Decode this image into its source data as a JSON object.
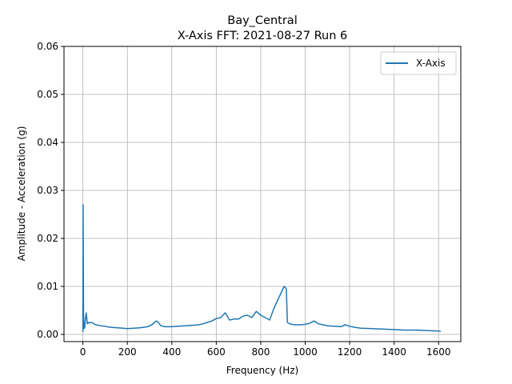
{
  "chart_data": {
    "type": "line",
    "title": "Bay_Central",
    "subtitle": "X-Axis FFT: 2021-08-27 Run 6",
    "xlabel": "Frequency (Hz)",
    "ylabel": "Amplitude - Acceleration (g)",
    "xlim": [
      -85,
      1700
    ],
    "ylim": [
      -0.0015,
      0.06
    ],
    "xticks": [
      0,
      200,
      400,
      600,
      800,
      1000,
      1200,
      1400,
      1600
    ],
    "xtick_labels": [
      "0",
      "200",
      "400",
      "600",
      "800",
      "1000",
      "1200",
      "1400",
      "1600"
    ],
    "yticks": [
      0.0,
      0.01,
      0.02,
      0.03,
      0.04,
      0.05,
      0.06
    ],
    "ytick_labels": [
      "0.00",
      "0.01",
      "0.02",
      "0.03",
      "0.04",
      "0.05",
      "0.06"
    ],
    "grid": true,
    "legend_position": "top-right",
    "series": [
      {
        "name": "X-Axis",
        "color": "#1f77b4",
        "x": [
          0,
          1,
          3,
          5,
          8,
          10,
          12,
          15,
          20,
          25,
          30,
          40,
          50,
          60,
          80,
          100,
          120,
          150,
          180,
          200,
          230,
          260,
          290,
          310,
          330,
          340,
          350,
          370,
          400,
          430,
          460,
          490,
          520,
          540,
          560,
          580,
          600,
          620,
          640,
          660,
          680,
          700,
          720,
          740,
          760,
          780,
          800,
          820,
          840,
          860,
          870,
          880,
          890,
          900,
          905,
          910,
          915,
          920,
          930,
          950,
          980,
          1000,
          1020,
          1040,
          1060,
          1080,
          1100,
          1130,
          1160,
          1180,
          1200,
          1220,
          1250,
          1300,
          1350,
          1400,
          1450,
          1500,
          1550,
          1600,
          1610
        ],
        "values": [
          0.0005,
          0.027,
          0.004,
          0.0012,
          0.0015,
          0.0025,
          0.0035,
          0.0045,
          0.0022,
          0.0025,
          0.0024,
          0.0025,
          0.0022,
          0.002,
          0.0018,
          0.0017,
          0.0015,
          0.0014,
          0.0013,
          0.0012,
          0.0013,
          0.0014,
          0.0016,
          0.002,
          0.0028,
          0.0025,
          0.0018,
          0.0016,
          0.0016,
          0.0017,
          0.0018,
          0.0019,
          0.002,
          0.0022,
          0.0025,
          0.0028,
          0.0033,
          0.0035,
          0.0045,
          0.003,
          0.0032,
          0.0032,
          0.0038,
          0.004,
          0.0035,
          0.0048,
          0.004,
          0.0035,
          0.003,
          0.0055,
          0.0065,
          0.0075,
          0.0085,
          0.0095,
          0.01,
          0.0098,
          0.0095,
          0.0025,
          0.0022,
          0.002,
          0.002,
          0.0021,
          0.0023,
          0.0028,
          0.0022,
          0.002,
          0.0018,
          0.0017,
          0.0016,
          0.002,
          0.0017,
          0.0015,
          0.0013,
          0.0012,
          0.0011,
          0.001,
          0.0009,
          0.0009,
          0.0008,
          0.0007,
          0.0006
        ]
      }
    ]
  }
}
